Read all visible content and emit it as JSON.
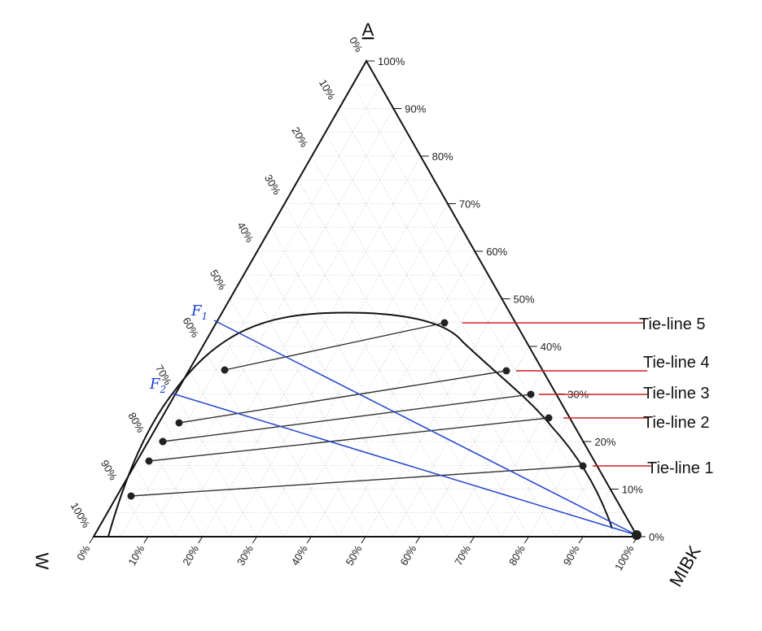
{
  "diagram": {
    "type": "ternary",
    "components": {
      "top": "A",
      "left": "W",
      "right": "MIBK"
    },
    "right_edge_ticks": [
      "100%",
      "90%",
      "80%",
      "70%",
      "60%",
      "50%",
      "40%",
      "30%",
      "20%",
      "10%",
      "0%"
    ],
    "left_edge_ticks": [
      "0%",
      "10%",
      "20%",
      "30%",
      "40%",
      "50%",
      "60%",
      "70%",
      "80%",
      "90%",
      "100%"
    ],
    "bottom_edge_ticks": [
      "0%",
      "10%",
      "20%",
      "30%",
      "40%",
      "50%",
      "60%",
      "70%",
      "80%",
      "90%",
      "100%"
    ],
    "feeds": [
      {
        "label": "F",
        "subscript": "1",
        "A_fraction": 0.42
      },
      {
        "label": "F",
        "subscript": "2",
        "A_fraction": 0.28
      }
    ],
    "tie_lines": [
      {
        "label": "Tie-line 1",
        "A_left": 0.08,
        "A_right": 0.13
      },
      {
        "label": "Tie-line 2",
        "A_left": 0.14,
        "A_right": 0.23
      },
      {
        "label": "Tie-line 3",
        "A_left": 0.18,
        "A_right": 0.27
      },
      {
        "label": "Tie-line 4",
        "A_left": 0.22,
        "A_right": 0.31
      },
      {
        "label": "Tie-line 5",
        "A_left": 0.31,
        "A_right": 0.4
      }
    ],
    "colors": {
      "frame": "#111111",
      "grid": "#c8c8c8",
      "feed_line": "#2244cc",
      "tie_pointer": "#cc2222",
      "point": "#222222"
    }
  }
}
